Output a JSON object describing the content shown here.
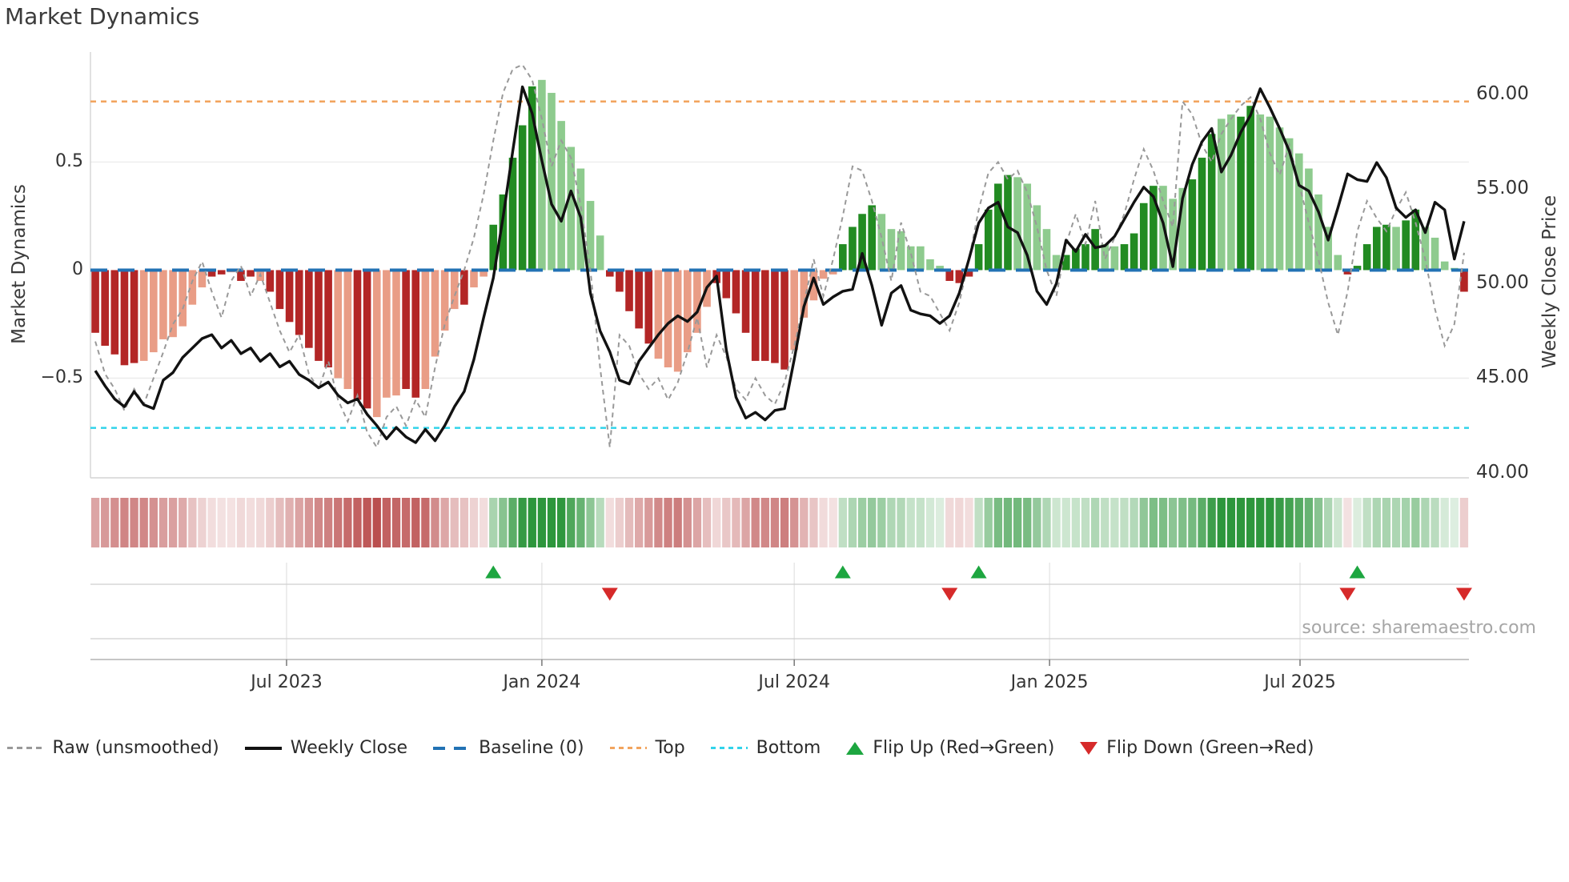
{
  "title": "Market Dynamics",
  "source": "source: sharemaestro.com",
  "axes": {
    "left": {
      "title": "Market Dynamics",
      "ticks": [
        {
          "label": "0.5",
          "value": 0.5
        },
        {
          "label": "0",
          "value": 0
        },
        {
          "label": "−0.5",
          "value": -0.5
        }
      ]
    },
    "right": {
      "title": "Weekly Close Price",
      "ticks": [
        {
          "label": "60.00",
          "value": 60
        },
        {
          "label": "55.00",
          "value": 55
        },
        {
          "label": "50.00",
          "value": 50
        },
        {
          "label": "45.00",
          "value": 45
        },
        {
          "label": "40.00",
          "value": 40
        }
      ]
    },
    "x": {
      "ticks": [
        {
          "label": "Jul 2023",
          "week": 19.7
        },
        {
          "label": "Jan 2024",
          "week": 46.0
        },
        {
          "label": "Jul 2024",
          "week": 72.0
        },
        {
          "label": "Jan 2025",
          "week": 98.3
        },
        {
          "label": "Jul 2025",
          "week": 124.1
        }
      ]
    }
  },
  "legend": [
    {
      "id": "raw",
      "label": "Raw (unsmoothed)"
    },
    {
      "id": "close",
      "label": "Weekly Close"
    },
    {
      "id": "baseline",
      "label": "Baseline (0)"
    },
    {
      "id": "top",
      "label": "Top"
    },
    {
      "id": "bottom",
      "label": "Bottom"
    },
    {
      "id": "flip-up",
      "label": "Flip Up (Red→Green)"
    },
    {
      "id": "flip-down",
      "label": "Flip Down (Green→Red)"
    }
  ],
  "colors": {
    "bar_neg_dark": "#b32626",
    "bar_neg_light": "#e99d86",
    "bar_pos_dark": "#228b22",
    "bar_pos_light": "#8ecb8e",
    "raw_line": "#999999",
    "close_line": "#121212",
    "baseline": "#2272b4",
    "top_line": "#f2a45e",
    "bottom_line": "#31d3ea",
    "flip_up": "#1da640",
    "flip_down": "#d62a2a",
    "grid": "#ececec",
    "spine": "#d4d4d4",
    "heat_neg": "185,75,75",
    "heat_pos": "45,150,60"
  },
  "chart_data": {
    "type": "combo (bar oscillator + dashed raw line + price line + heatmap strip + event markers)",
    "title": "Market Dynamics",
    "x_unit": "weekly index 0–141 (≈ Feb 2023 – Nov 2025, month ticks shown)",
    "n_points": 142,
    "x_tick_labels": [
      {
        "label": "Jul 2023",
        "week": 19.7
      },
      {
        "label": "Jan 2024",
        "week": 46.0
      },
      {
        "label": "Jul 2024",
        "week": 72.0
      },
      {
        "label": "Jan 2025",
        "week": 98.3
      },
      {
        "label": "Jul 2025",
        "week": 124.1
      }
    ],
    "left_axis": {
      "label": "Market Dynamics",
      "ticks": [
        0.5,
        0,
        -0.5
      ],
      "range": [
        -0.961,
        1.009
      ]
    },
    "right_axis": {
      "label": "Weekly Close Price",
      "ticks": [
        60,
        55,
        50,
        45,
        40
      ],
      "range": [
        39.74,
        62.24
      ]
    },
    "grid": "horizontal at left-axis ticks only",
    "legend_position": "bottom center, single row",
    "reference_lines": [
      {
        "name": "Baseline (0)",
        "axis": "left",
        "value": 0,
        "style": "long-dash",
        "color": "#2272b4"
      },
      {
        "name": "Top",
        "axis": "left",
        "value": 0.78,
        "style": "short-dash",
        "color": "#f2a45e"
      },
      {
        "name": "Bottom",
        "axis": "left",
        "value": -0.73,
        "style": "short-dash",
        "color": "#31d3ea"
      }
    ],
    "series": [
      {
        "name": "Market Dynamics (smoothed bars)",
        "type": "bar",
        "axis": "left",
        "shade_pattern": "dddddlllllllddlddldddddddllddlllddlllldlldddddllllllldddddlllllldddddدddlllllddddlllllllddddddd",
        "shades": "dddddlllllllddlddldddddddllddlllddlllldlldddddllllllldddddllllllddddddddlllllddddllllllldddddddlllllddddllddddllldddllddllllllllldddddlddlllld",
        "values": [
          -0.29,
          -0.35,
          -0.39,
          -0.44,
          -0.43,
          -0.42,
          -0.38,
          -0.32,
          -0.31,
          -0.26,
          -0.16,
          -0.08,
          -0.03,
          -0.02,
          -0.01,
          -0.05,
          -0.03,
          -0.05,
          -0.1,
          -0.18,
          -0.24,
          -0.3,
          -0.36,
          -0.42,
          -0.45,
          -0.5,
          -0.55,
          -0.6,
          -0.64,
          -0.68,
          -0.59,
          -0.58,
          -0.55,
          -0.59,
          -0.55,
          -0.4,
          -0.28,
          -0.18,
          -0.16,
          -0.08,
          -0.03,
          0.21,
          0.35,
          0.52,
          0.67,
          0.85,
          0.88,
          0.82,
          0.69,
          0.57,
          0.47,
          0.32,
          0.16,
          -0.03,
          -0.1,
          -0.19,
          -0.27,
          -0.34,
          -0.41,
          -0.45,
          -0.47,
          -0.38,
          -0.29,
          -0.17,
          -0.06,
          -0.13,
          -0.2,
          -0.29,
          -0.42,
          -0.42,
          -0.43,
          -0.46,
          -0.37,
          -0.22,
          -0.14,
          -0.04,
          -0.02,
          0.12,
          0.2,
          0.26,
          0.3,
          0.26,
          0.19,
          0.18,
          0.11,
          0.11,
          0.05,
          0.02,
          -0.05,
          -0.06,
          -0.03,
          0.12,
          0.28,
          0.4,
          0.44,
          0.43,
          0.4,
          0.3,
          0.19,
          0.07,
          0.07,
          0.1,
          0.12,
          0.19,
          0.12,
          0.11,
          0.12,
          0.17,
          0.31,
          0.39,
          0.39,
          0.33,
          0.38,
          0.42,
          0.52,
          0.63,
          0.7,
          0.72,
          0.71,
          0.76,
          0.72,
          0.71,
          0.66,
          0.61,
          0.54,
          0.47,
          0.35,
          0.2,
          0.07,
          -0.02,
          0.02,
          0.12,
          0.2,
          0.21,
          0.2,
          0.23,
          0.28,
          0.2,
          0.15,
          0.04,
          0.01,
          -0.1
        ]
      },
      {
        "name": "Raw (unsmoothed)",
        "type": "line",
        "style": "dashed",
        "axis": "left",
        "color": "#999999",
        "values": [
          -0.33,
          -0.48,
          -0.55,
          -0.65,
          -0.55,
          -0.62,
          -0.5,
          -0.38,
          -0.25,
          -0.18,
          -0.05,
          0.04,
          -0.1,
          -0.22,
          -0.05,
          0.02,
          -0.12,
          -0.02,
          -0.15,
          -0.28,
          -0.38,
          -0.3,
          -0.48,
          -0.55,
          -0.42,
          -0.6,
          -0.7,
          -0.58,
          -0.75,
          -0.82,
          -0.68,
          -0.63,
          -0.72,
          -0.6,
          -0.68,
          -0.45,
          -0.25,
          -0.12,
          0.0,
          0.15,
          0.35,
          0.6,
          0.82,
          0.93,
          0.95,
          0.88,
          0.7,
          0.48,
          0.6,
          0.52,
          0.3,
          0.0,
          -0.45,
          -0.82,
          -0.3,
          -0.35,
          -0.48,
          -0.55,
          -0.5,
          -0.6,
          -0.52,
          -0.38,
          -0.22,
          -0.45,
          -0.3,
          -0.4,
          -0.55,
          -0.6,
          -0.5,
          -0.58,
          -0.62,
          -0.52,
          -0.35,
          -0.15,
          0.05,
          -0.12,
          0.05,
          0.25,
          0.48,
          0.46,
          0.32,
          0.15,
          -0.05,
          0.22,
          0.08,
          -0.1,
          -0.12,
          -0.2,
          -0.28,
          -0.15,
          0.05,
          0.28,
          0.45,
          0.5,
          0.42,
          0.46,
          0.36,
          0.2,
          0.0,
          -0.12,
          0.12,
          0.26,
          0.12,
          0.32,
          0.05,
          0.15,
          0.26,
          0.42,
          0.56,
          0.46,
          0.32,
          0.2,
          0.78,
          0.72,
          0.58,
          0.5,
          0.63,
          0.7,
          0.76,
          0.8,
          0.7,
          0.54,
          0.44,
          0.58,
          0.4,
          0.22,
          0.05,
          -0.15,
          -0.3,
          -0.1,
          0.18,
          0.32,
          0.24,
          0.18,
          0.28,
          0.36,
          0.22,
          0.05,
          -0.18,
          -0.35,
          -0.25,
          0.08
        ]
      },
      {
        "name": "Weekly Close",
        "type": "line",
        "style": "solid",
        "axis": "right",
        "color": "#121212",
        "values": [
          45.4,
          44.6,
          43.9,
          43.5,
          44.3,
          43.6,
          43.4,
          44.9,
          45.3,
          46.1,
          46.6,
          47.1,
          47.3,
          46.6,
          47.0,
          46.3,
          46.6,
          45.9,
          46.3,
          45.6,
          45.9,
          45.2,
          44.9,
          44.5,
          44.8,
          44.1,
          43.7,
          43.9,
          43.1,
          42.5,
          41.8,
          42.4,
          41.9,
          41.6,
          42.3,
          41.7,
          42.5,
          43.5,
          44.3,
          46.0,
          48.2,
          50.3,
          53.5,
          57.0,
          60.4,
          59.0,
          56.5,
          54.2,
          53.3,
          54.9,
          53.5,
          49.5,
          47.5,
          46.4,
          44.9,
          44.7,
          45.9,
          46.6,
          47.3,
          47.9,
          48.3,
          48.0,
          48.5,
          49.8,
          50.4,
          46.5,
          44.0,
          42.9,
          43.2,
          42.8,
          43.3,
          43.4,
          46.0,
          48.8,
          50.3,
          48.9,
          49.3,
          49.6,
          49.7,
          51.6,
          49.9,
          47.8,
          49.5,
          49.9,
          48.6,
          48.4,
          48.3,
          47.9,
          48.3,
          49.5,
          51.3,
          53.2,
          54.0,
          54.3,
          53.0,
          52.7,
          51.5,
          49.6,
          48.9,
          50.0,
          52.3,
          51.7,
          52.6,
          51.9,
          52.0,
          52.5,
          53.4,
          54.3,
          55.1,
          54.6,
          53.2,
          50.9,
          54.5,
          56.3,
          57.5,
          58.2,
          55.9,
          56.8,
          58.0,
          58.9,
          60.3,
          59.3,
          58.2,
          57.0,
          55.2,
          54.9,
          53.8,
          52.3,
          54.0,
          55.8,
          55.5,
          55.4,
          56.4,
          55.6,
          54.0,
          53.5,
          53.9,
          52.7,
          54.3,
          53.9,
          51.3,
          53.3
        ]
      }
    ],
    "heatmap_strip": "row of 142 cells below plot; red shades for negative bar values, green shades for positive, intensity proportional to |value|",
    "markers": {
      "flip_up_weeks": [
        41,
        77,
        91,
        130
      ],
      "flip_down_weeks": [
        53,
        88,
        129,
        141
      ],
      "flip_up_label": "Flip Up (Red→Green)",
      "flip_down_label": "Flip Down (Green→Red)"
    }
  }
}
